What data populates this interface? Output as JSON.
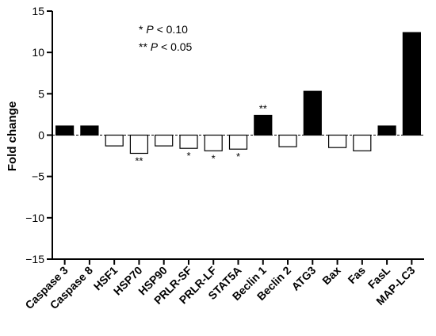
{
  "chart_data": {
    "type": "bar",
    "title": "",
    "xlabel": "",
    "ylabel": "Fold change",
    "ylim": [
      -15,
      15
    ],
    "yticks": [
      -15,
      -10,
      -5,
      0,
      5,
      10,
      15
    ],
    "ytick_labels": [
      "−15",
      "−10",
      "−5",
      "0",
      "5",
      "10",
      "15"
    ],
    "categories": [
      "Caspase 3",
      "Caspase 8",
      "HSF1",
      "HSP70",
      "HSP90",
      "PRLR-SF",
      "PRLR-LF",
      "STAT5A",
      "Beclin 1",
      "Beclin 2",
      "ATG3",
      "Bax",
      "Fas",
      "FasL",
      "MAP-LC3"
    ],
    "values": [
      1.1,
      1.1,
      -1.3,
      -2.2,
      -1.3,
      -1.6,
      -1.9,
      -1.7,
      2.4,
      -1.4,
      5.3,
      -1.5,
      -1.9,
      1.1,
      12.4
    ],
    "fill": [
      "black",
      "black",
      "white",
      "white",
      "white",
      "white",
      "white",
      "white",
      "black",
      "white",
      "black",
      "white",
      "white",
      "black",
      "black"
    ],
    "significance": [
      "",
      "",
      "",
      "**",
      "",
      "*",
      "*",
      "*",
      "**",
      "",
      "",
      "",
      "",
      "",
      ""
    ],
    "legend": [
      {
        "mark": "*",
        "label": "P",
        "op": "< 0.10"
      },
      {
        "mark": "**",
        "label": "P",
        "op": "< 0.05"
      }
    ],
    "grid": false,
    "zero_line": "dashed"
  }
}
